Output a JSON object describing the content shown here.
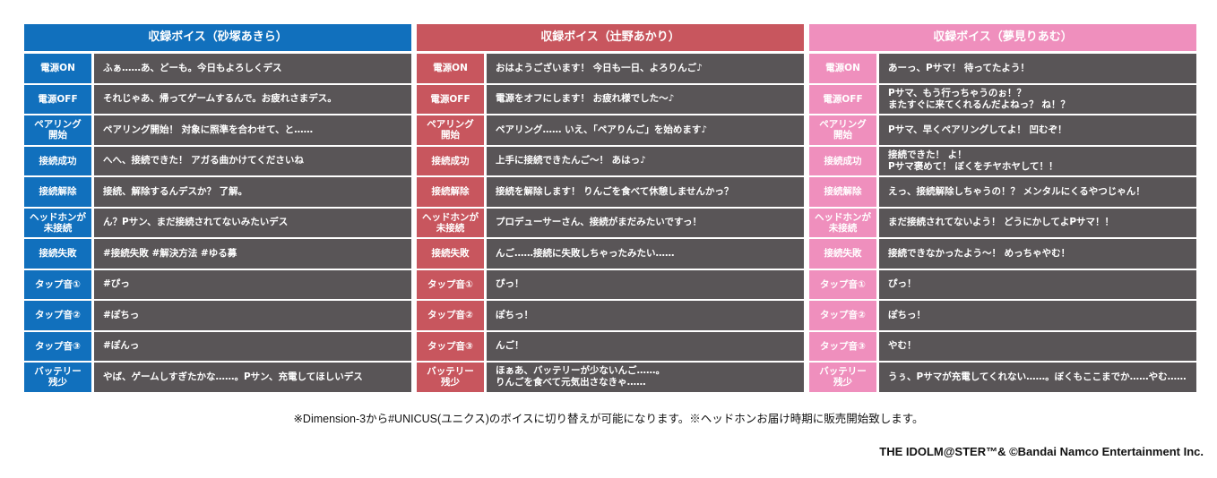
{
  "colors": {
    "blue": "#1170bd",
    "red": "#c8565e",
    "pink": "#ef8fbd",
    "row_bg": "#595557"
  },
  "tables": [
    {
      "title": "収録ボイス（砂塚あきら）",
      "color": "#1170bd",
      "rows": [
        {
          "label": "電源ON",
          "text": "ふぁ……あ、どーも。今日もよろしくデス"
        },
        {
          "label": "電源OFF",
          "text": "それじゃあ、帰ってゲームするんで。お疲れさまデス。"
        },
        {
          "label": "ペアリング\n開始",
          "text": "ペアリング開始！ 対象に照準を合わせて、と……"
        },
        {
          "label": "接続成功",
          "text": "へへ、接続できた！ アガる曲かけてくださいね"
        },
        {
          "label": "接続解除",
          "text": "接続、解除するんデスか？ 了解。"
        },
        {
          "label": "ヘッドホンが\n未接続",
          "text": "ん？Pサン、まだ接続されてないみたいデス"
        },
        {
          "label": "接続失敗",
          "text": "#接続失敗 #解決方法 #ゆる募"
        },
        {
          "label": "タップ音①",
          "text": "#ぴっ"
        },
        {
          "label": "タップ音②",
          "text": "#ぽちっ"
        },
        {
          "label": "タップ音③",
          "text": "#ぽんっ"
        },
        {
          "label": "バッテリー\n残少",
          "text": "やば、ゲームしすぎたかな……。Pサン、充電してほしいデス"
        }
      ]
    },
    {
      "title": "収録ボイス（辻野あかり）",
      "color": "#c8565e",
      "rows": [
        {
          "label": "電源ON",
          "text": "おはようございます！ 今日も一日、よろりんご♪"
        },
        {
          "label": "電源OFF",
          "text": "電源をオフにします！ お疲れ様でした～♪"
        },
        {
          "label": "ペアリング\n開始",
          "text": "ペアリング…… いえ、「ペアりんご」を始めます♪"
        },
        {
          "label": "接続成功",
          "text": "上手に接続できたんご～！ あはっ♪"
        },
        {
          "label": "接続解除",
          "text": "接続を解除します！ りんごを食べて休憩しませんかっ？"
        },
        {
          "label": "ヘッドホンが\n未接続",
          "text": "プロデューサーさん、接続がまだみたいですっ！"
        },
        {
          "label": "接続失敗",
          "text": "んご……接続に失敗しちゃったみたい……"
        },
        {
          "label": "タップ音①",
          "text": "ぴっ！"
        },
        {
          "label": "タップ音②",
          "text": "ぽちっ！"
        },
        {
          "label": "タップ音③",
          "text": "んご！"
        },
        {
          "label": "バッテリー\n残少",
          "text": "ほぁあ、バッテリーが少ないんご……。\nりんごを食べて元気出さなきゃ……"
        }
      ]
    },
    {
      "title": "収録ボイス（夢見りあむ）",
      "color": "#ef8fbd",
      "rows": [
        {
          "label": "電源ON",
          "text": "あーっ、Pサマ！ 待ってたよう！"
        },
        {
          "label": "電源OFF",
          "text": "Pサマ、もう行っちゃうのぉ！？\nまたすぐに来てくれるんだよねっ？ ね！？"
        },
        {
          "label": "ペアリング\n開始",
          "text": "Pサマ、早くペアリングしてよ！ 凹むぞ！"
        },
        {
          "label": "接続成功",
          "text": "接続できた！ よ！\nPサマ褒めて！ ぼくをチヤホヤして！！"
        },
        {
          "label": "接続解除",
          "text": "えっ、接続解除しちゃうの！？ メンタルにくるやつじゃん！"
        },
        {
          "label": "ヘッドホンが\n未接続",
          "text": "まだ接続されてないよう！ どうにかしてよPサマ！！"
        },
        {
          "label": "接続失敗",
          "text": "接続できなかったよう～！ めっちゃやむ！"
        },
        {
          "label": "タップ音①",
          "text": "ぴっ！"
        },
        {
          "label": "タップ音②",
          "text": "ぽちっ！"
        },
        {
          "label": "タップ音③",
          "text": "やむ！"
        },
        {
          "label": "バッテリー\n残少",
          "text": "うぅ、Pサマが充電してくれない……。ぼくもここまでか……やむ……"
        }
      ]
    }
  ],
  "footnote": "※Dimension-3から#UNICUS(ユニクス)のボイスに切り替えが可能になります。※ヘッドホンお届け時期に販売開始致します。",
  "copyright": "THE IDOLM@STER™& ©Bandai Namco Entertainment Inc."
}
